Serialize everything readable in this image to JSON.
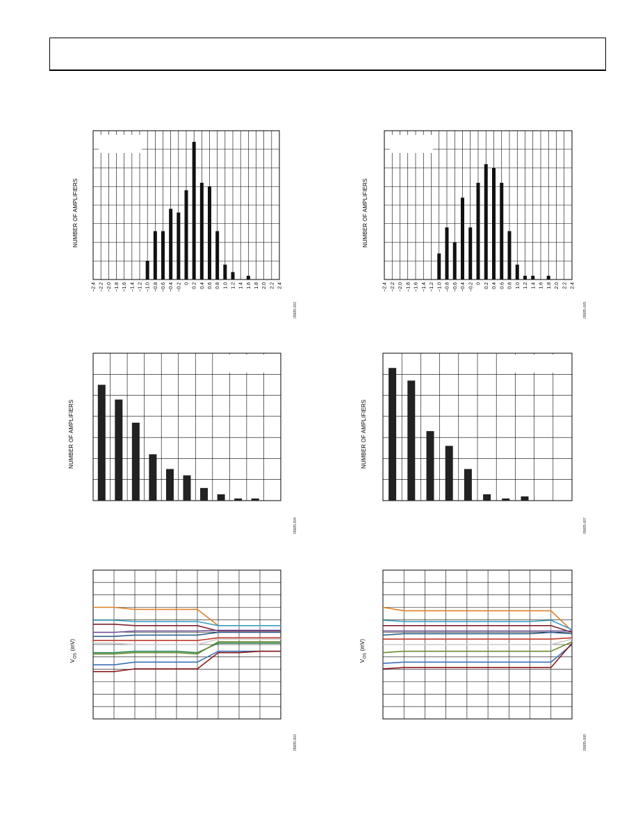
{
  "chart_data": [
    {
      "id": "c1",
      "type": "bar",
      "ylabel": "NUMBER OF AMPLIFIERS",
      "code": "05885-002",
      "categories": [
        "−2.4",
        "−2.2",
        "−2.0",
        "−1.8",
        "−1.6",
        "−1.4",
        "−1.2",
        "−1.0",
        "−0.8",
        "−0.6",
        "−0.4",
        "−0.2",
        "0",
        "0.2",
        "0.4",
        "0.6",
        "0.8",
        "1.0",
        "1.2",
        "1.4",
        "1.6",
        "1.8",
        "2.0",
        "2.2",
        "2.4"
      ],
      "values": [
        0,
        0,
        0,
        0,
        0,
        0,
        0,
        10,
        26,
        26,
        38,
        36,
        48,
        74,
        52,
        50,
        26,
        8,
        4,
        0,
        2,
        0,
        0,
        0,
        0
      ],
      "ylim": [
        0,
        80
      ],
      "grid": true
    },
    {
      "id": "c2",
      "type": "bar",
      "ylabel": "NUMBER OF AMPLIFIERS",
      "code": "05885-005",
      "categories": [
        "−2.4",
        "−2.2",
        "−2.0",
        "−1.8",
        "−1.6",
        "−1.4",
        "−1.2",
        "−1.0",
        "−0.8",
        "−0.6",
        "−0.4",
        "−0.2",
        "0",
        "0.2",
        "0.4",
        "0.6",
        "0.8",
        "1.0",
        "1.2",
        "1.4",
        "1.6",
        "1.8",
        "2.0",
        "2.2",
        "2.4"
      ],
      "values": [
        0,
        0,
        0,
        0,
        0,
        0,
        0,
        14,
        28,
        20,
        44,
        28,
        52,
        62,
        60,
        52,
        26,
        8,
        2,
        2,
        0,
        2,
        0,
        0,
        0
      ],
      "ylim": [
        0,
        80
      ],
      "grid": true
    },
    {
      "id": "c3",
      "type": "bar",
      "ylabel": "NUMBER OF AMPLIFIERS",
      "code": "05885-004",
      "categories": [
        "",
        "",
        "",
        "",
        "",
        "",
        "",
        "",
        "",
        "",
        ""
      ],
      "values": [
        110,
        96,
        74,
        44,
        30,
        24,
        12,
        6,
        2,
        2,
        0
      ],
      "ylim": [
        0,
        140
      ],
      "grid": true
    },
    {
      "id": "c4",
      "type": "bar",
      "ylabel": "NUMBER OF AMPLIFIERS",
      "code": "05885-007",
      "categories": [
        "",
        "",
        "",
        "",
        "",
        "",
        "",
        "",
        "",
        ""
      ],
      "values": [
        126,
        114,
        66,
        52,
        30,
        6,
        2,
        4,
        0,
        0
      ],
      "ylim": [
        0,
        140
      ],
      "grid": true
    },
    {
      "id": "c5",
      "type": "line",
      "ylabel": "V",
      "ylabel_sub": "OS",
      "ylabel_unit": " (mV)",
      "code": "05885-003",
      "x": [
        0,
        1,
        2,
        3,
        4,
        5,
        6,
        7,
        8,
        9
      ],
      "ylim": [
        -1.1,
        1.1
      ],
      "grid": true,
      "series": [
        {
          "color": "#e07f26",
          "values": [
            0.55,
            0.55,
            0.52,
            0.52,
            0.52,
            0.52,
            0.28,
            0.28,
            0.28,
            0.28
          ]
        },
        {
          "color": "#3ba2c4",
          "values": [
            0.36,
            0.36,
            0.34,
            0.34,
            0.34,
            0.34,
            0.28,
            0.28,
            0.28,
            0.28
          ]
        },
        {
          "color": "#7a2230",
          "values": [
            0.3,
            0.3,
            0.28,
            0.28,
            0.28,
            0.28,
            0.2,
            0.2,
            0.2,
            0.2
          ]
        },
        {
          "color": "#6b4c9a",
          "values": [
            0.18,
            0.18,
            0.2,
            0.2,
            0.2,
            0.2,
            0.21,
            0.21,
            0.21,
            0.21
          ]
        },
        {
          "color": "#2e5c8a",
          "values": [
            0.12,
            0.12,
            0.14,
            0.14,
            0.14,
            0.14,
            0.18,
            0.18,
            0.18,
            0.18
          ]
        },
        {
          "color": "#c0392b",
          "values": [
            0.06,
            0.06,
            0.06,
            0.06,
            0.06,
            0.06,
            0.1,
            0.1,
            0.1,
            0.1
          ]
        },
        {
          "color": "#cccccc",
          "values": [
            0.02,
            0.02,
            0.0,
            0.0,
            0.0,
            0.0,
            0.08,
            0.08,
            0.08,
            0.08
          ]
        },
        {
          "color": "#2e8b57",
          "values": [
            -0.12,
            -0.12,
            -0.1,
            -0.1,
            -0.1,
            -0.12,
            0.02,
            0.02,
            0.02,
            0.02
          ]
        },
        {
          "color": "#6a8a2e",
          "values": [
            -0.14,
            -0.14,
            -0.12,
            -0.12,
            -0.12,
            -0.14,
            0.04,
            0.04,
            0.04,
            0.04
          ]
        },
        {
          "color": "#3b6fb6",
          "values": [
            -0.3,
            -0.3,
            -0.26,
            -0.26,
            -0.26,
            -0.26,
            -0.1,
            -0.1,
            -0.1,
            -0.1
          ]
        },
        {
          "color": "#8b1a1a",
          "values": [
            -0.4,
            -0.4,
            -0.36,
            -0.36,
            -0.36,
            -0.36,
            -0.12,
            -0.12,
            -0.1,
            -0.1
          ]
        }
      ]
    },
    {
      "id": "c6",
      "type": "line",
      "ylabel": "V",
      "ylabel_sub": "OS",
      "ylabel_unit": " (mV)",
      "code": "05885-008",
      "x": [
        0,
        1,
        2,
        3,
        4,
        5,
        6,
        7,
        8,
        9
      ],
      "ylim": [
        -1.1,
        1.1
      ],
      "grid": true,
      "series": [
        {
          "color": "#e07f26",
          "values": [
            0.55,
            0.5,
            0.5,
            0.5,
            0.5,
            0.5,
            0.5,
            0.5,
            0.5,
            0.2
          ]
        },
        {
          "color": "#3ba2c4",
          "values": [
            0.36,
            0.34,
            0.34,
            0.34,
            0.34,
            0.34,
            0.34,
            0.34,
            0.36,
            0.22
          ]
        },
        {
          "color": "#7a2230",
          "values": [
            0.28,
            0.28,
            0.28,
            0.28,
            0.28,
            0.28,
            0.28,
            0.28,
            0.28,
            0.18
          ]
        },
        {
          "color": "#6b4c9a",
          "values": [
            0.2,
            0.2,
            0.2,
            0.2,
            0.2,
            0.2,
            0.2,
            0.2,
            0.2,
            0.2
          ]
        },
        {
          "color": "#2e5c8a",
          "values": [
            0.14,
            0.16,
            0.16,
            0.16,
            0.16,
            0.16,
            0.16,
            0.16,
            0.18,
            0.16
          ]
        },
        {
          "color": "#c0392b",
          "values": [
            0.08,
            0.08,
            0.08,
            0.08,
            0.08,
            0.08,
            0.08,
            0.08,
            0.08,
            0.1
          ]
        },
        {
          "color": "#cccccc",
          "values": [
            0.0,
            0.0,
            0.0,
            0.0,
            0.0,
            0.0,
            0.0,
            0.0,
            0.0,
            0.08
          ]
        },
        {
          "color": "#6a8a2e",
          "values": [
            -0.12,
            -0.1,
            -0.1,
            -0.1,
            -0.1,
            -0.1,
            -0.1,
            -0.1,
            -0.1,
            0.04
          ]
        },
        {
          "color": "#3b6fb6",
          "values": [
            -0.28,
            -0.26,
            -0.26,
            -0.26,
            -0.26,
            -0.26,
            -0.26,
            -0.26,
            -0.26,
            0.0
          ]
        },
        {
          "color": "#8b1a1a",
          "values": [
            -0.36,
            -0.34,
            -0.34,
            -0.34,
            -0.34,
            -0.34,
            -0.34,
            -0.34,
            -0.34,
            0.02
          ]
        }
      ]
    }
  ]
}
